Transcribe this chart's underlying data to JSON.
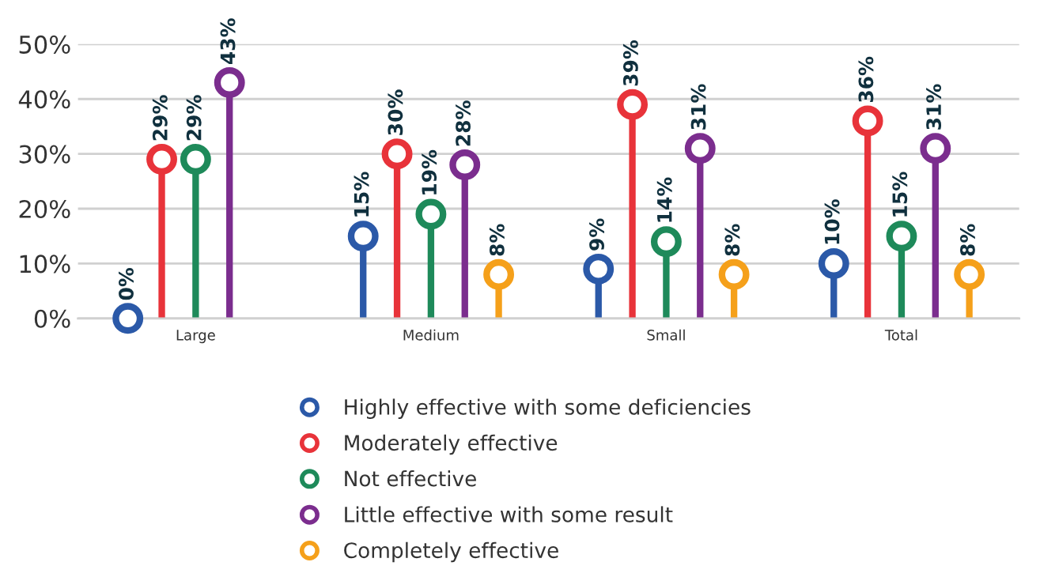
{
  "chart_data": {
    "type": "lollipop",
    "categories": [
      "Large",
      "Medium",
      "Small",
      "Total"
    ],
    "series": [
      {
        "name": "Highly effective with some deficiencies",
        "color": "#2b59a8",
        "values": [
          0,
          15,
          9,
          10
        ],
        "value_labels": [
          "0%",
          "15%",
          "9%",
          "10%"
        ]
      },
      {
        "name": "Moderately effective",
        "color": "#e8333a",
        "values": [
          29,
          30,
          39,
          36
        ],
        "value_labels": [
          "29%",
          "30%",
          "39%",
          "36%"
        ]
      },
      {
        "name": "Not effective",
        "color": "#1e8a5a",
        "values": [
          29,
          19,
          14,
          15
        ],
        "value_labels": [
          "29%",
          "19%",
          "14%",
          "15%"
        ]
      },
      {
        "name": "Little effective with some result",
        "color": "#7b2d8e",
        "values": [
          43,
          28,
          31,
          31
        ],
        "value_labels": [
          "43%",
          "28%",
          "31%",
          "31%"
        ]
      },
      {
        "name": "Completely effective",
        "color": "#f5a01a",
        "values": [
          null,
          8,
          8,
          8
        ],
        "value_labels": [
          null,
          "8%",
          "8%",
          "8%"
        ]
      }
    ],
    "ylim": [
      0,
      50
    ],
    "yticks": [
      {
        "value": 0,
        "label": "0%"
      },
      {
        "value": 10,
        "label": "10%"
      },
      {
        "value": 20,
        "label": "20%"
      },
      {
        "value": 30,
        "label": "30%"
      },
      {
        "value": 40,
        "label": "40%"
      },
      {
        "value": 50,
        "label": "50%"
      }
    ],
    "grid": "y",
    "legend": "bottom",
    "marker": "circle"
  }
}
